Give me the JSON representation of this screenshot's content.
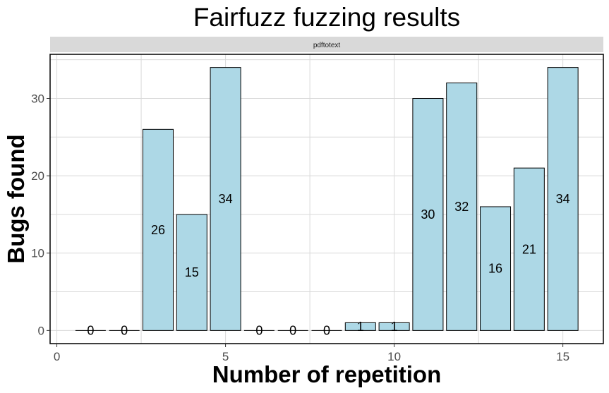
{
  "chart_data": {
    "type": "bar",
    "title": "Fairfuzz fuzzing results",
    "facet_label": "pdftotext",
    "xlabel": "Number of repetition",
    "ylabel": "Bugs found",
    "x": [
      1,
      2,
      3,
      4,
      5,
      6,
      7,
      8,
      9,
      10,
      11,
      12,
      13,
      14,
      15
    ],
    "values": [
      0,
      0,
      26,
      15,
      34,
      0,
      0,
      0,
      1,
      1,
      30,
      32,
      16,
      21,
      34
    ],
    "x_ticks": [
      0,
      5,
      10,
      15
    ],
    "y_ticks": [
      0,
      10,
      20,
      30
    ],
    "xlim": [
      -0.2,
      16.2
    ],
    "ylim": [
      -1.7,
      35.7
    ],
    "grid": true,
    "bar_fill": "#add8e6",
    "bar_outline": "#000000",
    "strip_fill": "#d9d9d9"
  }
}
